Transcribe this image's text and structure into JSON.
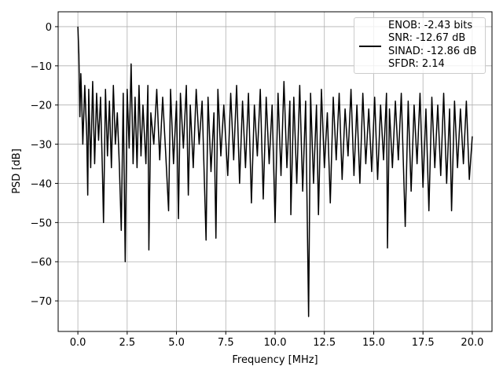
{
  "chart_data": {
    "type": "line",
    "xlabel": "Frequency [MHz]",
    "ylabel": "PSD [dB]",
    "x": [
      0,
      0.05,
      0.1,
      0.15,
      0.2,
      0.25,
      0.35,
      0.45,
      0.5,
      0.55,
      0.65,
      0.75,
      0.85,
      0.95,
      1.05,
      1.15,
      1.25,
      1.3,
      1.4,
      1.5,
      1.6,
      1.7,
      1.8,
      1.9,
      2.0,
      2.1,
      2.2,
      2.3,
      2.4,
      2.5,
      2.6,
      2.7,
      2.8,
      2.9,
      3.0,
      3.1,
      3.2,
      3.3,
      3.45,
      3.55,
      3.6,
      3.7,
      3.85,
      4.0,
      4.15,
      4.3,
      4.45,
      4.6,
      4.7,
      4.85,
      5.0,
      5.1,
      5.2,
      5.35,
      5.5,
      5.6,
      5.7,
      5.85,
      6.0,
      6.15,
      6.3,
      6.5,
      6.6,
      6.75,
      6.9,
      7.0,
      7.1,
      7.25,
      7.4,
      7.6,
      7.75,
      7.9,
      8.05,
      8.2,
      8.35,
      8.5,
      8.65,
      8.8,
      8.95,
      9.1,
      9.25,
      9.4,
      9.55,
      9.7,
      9.85,
      10.0,
      10.15,
      10.3,
      10.45,
      10.6,
      10.75,
      10.8,
      10.95,
      11.1,
      11.25,
      11.4,
      11.55,
      11.7,
      11.8,
      11.95,
      12.1,
      12.2,
      12.35,
      12.5,
      12.65,
      12.8,
      12.95,
      13.1,
      13.25,
      13.4,
      13.55,
      13.7,
      13.85,
      14.0,
      14.15,
      14.3,
      14.45,
      14.6,
      14.75,
      14.9,
      15.05,
      15.2,
      15.35,
      15.5,
      15.65,
      15.7,
      15.8,
      15.95,
      16.1,
      16.25,
      16.4,
      16.6,
      16.75,
      16.9,
      17.05,
      17.2,
      17.35,
      17.5,
      17.65,
      17.8,
      17.95,
      18.1,
      18.25,
      18.4,
      18.55,
      18.7,
      18.85,
      18.95,
      19.1,
      19.25,
      19.4,
      19.55,
      19.7,
      19.85,
      20.0
    ],
    "series": [
      {
        "name": "ENOB: -2.43 bits\nSNR: -12.67 dB\nSINAD: -12.86 dB\nSFDR: 2.14",
        "color": "#000000",
        "values": [
          0,
          -7,
          -23,
          -12,
          -20,
          -30,
          -15,
          -28,
          -43,
          -16,
          -36,
          -14,
          -35,
          -17,
          -29,
          -18,
          -38,
          -50,
          -16,
          -33,
          -19,
          -36,
          -15,
          -30,
          -22,
          -35,
          -52,
          -17,
          -60,
          -16,
          -31,
          -9.5,
          -35,
          -18,
          -36,
          -15,
          -33,
          -20,
          -35,
          -15,
          -57,
          -22,
          -30,
          -16,
          -34,
          -18,
          -32,
          -47,
          -16,
          -35,
          -19,
          -49,
          -17,
          -31,
          -15,
          -43,
          -20,
          -36,
          -16,
          -30,
          -19,
          -54.5,
          -18,
          -37,
          -22,
          -54,
          -16,
          -33,
          -20,
          -38,
          -17,
          -34,
          -15,
          -40,
          -19,
          -36,
          -17,
          -45,
          -20,
          -33,
          -16,
          -44,
          -18,
          -35,
          -20,
          -50,
          -17,
          -38,
          -14,
          -36,
          -19,
          -48,
          -18,
          -40,
          -15,
          -42,
          -19,
          -74,
          -17,
          -40,
          -20,
          -48,
          -16,
          -36,
          -22,
          -45,
          -18,
          -34,
          -17,
          -39,
          -21,
          -33,
          -16,
          -38,
          -20,
          -40,
          -17,
          -35,
          -21,
          -37,
          -18,
          -39,
          -20,
          -34,
          -17,
          -56.5,
          -21,
          -36,
          -19,
          -34,
          -17,
          -51,
          -19,
          -42,
          -20,
          -35,
          -17,
          -41,
          -21,
          -47,
          -18,
          -36,
          -20,
          -38,
          -17,
          -40,
          -21,
          -47,
          -19,
          -36,
          -21,
          -35,
          -19,
          -39,
          -28
        ]
      }
    ],
    "xlim": [
      -1,
      21
    ],
    "ylim": [
      -77.8,
      3.8
    ],
    "xticks": [
      {
        "value": 0,
        "label": "0.0"
      },
      2.5,
      {
        "value": 5,
        "label": "5.0"
      },
      7.5,
      {
        "value": 10,
        "label": "10.0"
      },
      12.5,
      {
        "value": 15,
        "label": "15.0"
      },
      17.5,
      {
        "value": 20,
        "label": "20.0"
      }
    ],
    "yticks": [
      0,
      {
        "value": -10,
        "label": "−10"
      },
      {
        "value": -20,
        "label": "−20"
      },
      {
        "value": -30,
        "label": "−30"
      },
      {
        "value": -40,
        "label": "−40"
      },
      {
        "value": -50,
        "label": "−50"
      },
      {
        "value": -60,
        "label": "−60"
      },
      {
        "value": -70,
        "label": "−70"
      }
    ],
    "grid": true,
    "legend": "upper right"
  }
}
